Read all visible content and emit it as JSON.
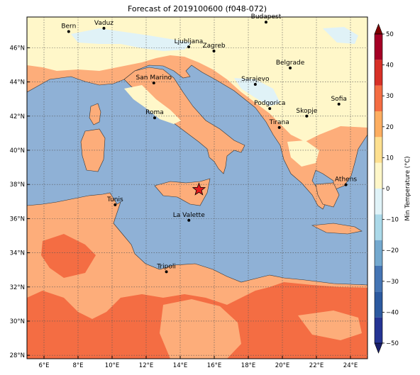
{
  "title": "Forecast of 2019100600 (f048-072)",
  "map": {
    "lon_range": [
      5,
      25
    ],
    "lat_range": [
      27.8,
      47.8
    ],
    "lon_ticks": [
      "6°E",
      "8°E",
      "10°E",
      "12°E",
      "14°E",
      "16°E",
      "18°E",
      "20°E",
      "22°E",
      "24°E"
    ],
    "lat_ticks": [
      "28°N",
      "30°N",
      "32°N",
      "34°N",
      "36°N",
      "38°N",
      "40°N",
      "42°N",
      "44°N",
      "46°N"
    ],
    "grid": true,
    "sea_color": "#8fb1d6",
    "land_colors": {
      "light_yellow": "#fff7c9",
      "pale_blue": "#e0f2f7",
      "peach": "#fdad7a",
      "orange": "#f46d43"
    },
    "marker": {
      "name": "star",
      "lon": 15.1,
      "lat": 37.7,
      "color": "#e31a1c"
    },
    "cities": [
      {
        "name": "Bern",
        "lon": 7.45,
        "lat": 46.95
      },
      {
        "name": "Vaduz",
        "lon": 9.52,
        "lat": 47.14
      },
      {
        "name": "Budapest",
        "lon": 19.04,
        "lat": 47.5
      },
      {
        "name": "Ljubljana",
        "lon": 14.5,
        "lat": 46.05
      },
      {
        "name": "Zagreb",
        "lon": 15.98,
        "lat": 45.81
      },
      {
        "name": "Belgrade",
        "lon": 20.46,
        "lat": 44.82
      },
      {
        "name": "Sarajevo",
        "lon": 18.41,
        "lat": 43.86
      },
      {
        "name": "San Marino",
        "lon": 12.45,
        "lat": 43.94
      },
      {
        "name": "Sofia",
        "lon": 23.32,
        "lat": 42.7
      },
      {
        "name": "Podgorica",
        "lon": 19.26,
        "lat": 42.44
      },
      {
        "name": "Skopje",
        "lon": 21.43,
        "lat": 42.0
      },
      {
        "name": "Roma",
        "lon": 12.5,
        "lat": 41.9
      },
      {
        "name": "Tirana",
        "lon": 19.82,
        "lat": 41.33
      },
      {
        "name": "Athens",
        "lon": 23.73,
        "lat": 37.98
      },
      {
        "name": "Tunis",
        "lon": 10.18,
        "lat": 36.81
      },
      {
        "name": "La Valette",
        "lon": 14.51,
        "lat": 35.9
      },
      {
        "name": "Tripoli",
        "lon": 13.19,
        "lat": 32.89
      }
    ]
  },
  "colorbar": {
    "label": "Min Temperature (°C)",
    "ticks": [
      "50",
      "40",
      "30",
      "20",
      "10",
      "0",
      "−10",
      "−20",
      "−30",
      "−40",
      "−50"
    ],
    "colors": [
      "#1a1f6b",
      "#253494",
      "#2c5aa0",
      "#4575b4",
      "#74a9cf",
      "#abd9e9",
      "#e0f3f8",
      "#fff7c9",
      "#fee090",
      "#fdae61",
      "#f46d43",
      "#d73027",
      "#a50026",
      "#7f0000"
    ]
  }
}
